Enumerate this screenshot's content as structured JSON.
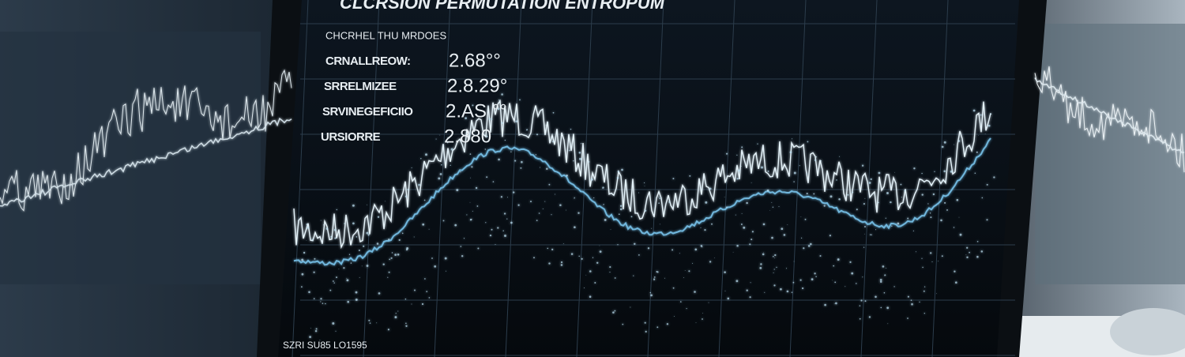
{
  "screen": {
    "title": "CLCRSION PERMUTATION ENTROPUM",
    "subtitle": "CHCRHEL THU MRDOES",
    "readouts": [
      {
        "label": "CRNALLREOW:",
        "value": "2.68°°"
      },
      {
        "label": "SRRELMIZEE",
        "value": "2.8.29°"
      },
      {
        "label": "SRVINEGEFICIIO",
        "value": "2.AS °°"
      },
      {
        "label": "URSIORRE",
        "value": "2.880"
      }
    ],
    "footer": "SZRI SU85 LO1595"
  }
}
